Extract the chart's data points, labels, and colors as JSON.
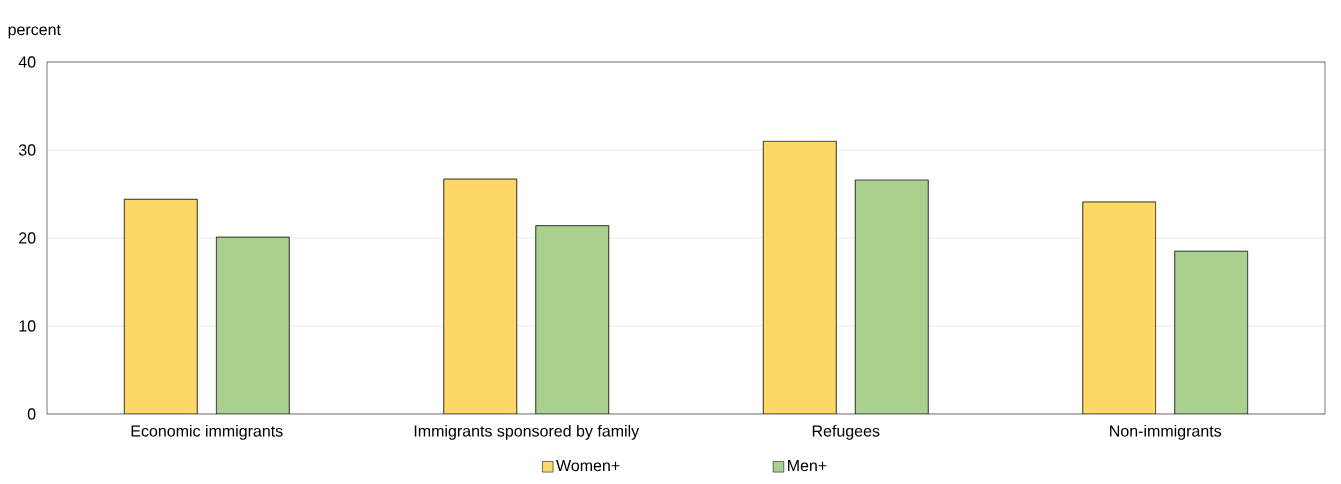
{
  "chart_data": {
    "type": "bar",
    "ylabel": "percent",
    "categories": [
      "Economic immigrants",
      "Immigrants sponsored by family",
      "Refugees",
      "Non-immigrants"
    ],
    "series": [
      {
        "name": "Women+",
        "color": "#fdd866",
        "values": [
          24.4,
          26.7,
          31.0,
          24.1
        ]
      },
      {
        "name": "Men+",
        "color": "#a9d08e",
        "values": [
          20.1,
          21.4,
          26.6,
          18.5
        ]
      }
    ],
    "ylim": [
      0,
      40
    ],
    "yticks": [
      0,
      10,
      20,
      30,
      40
    ],
    "grid": "y",
    "legend": "bottom"
  }
}
